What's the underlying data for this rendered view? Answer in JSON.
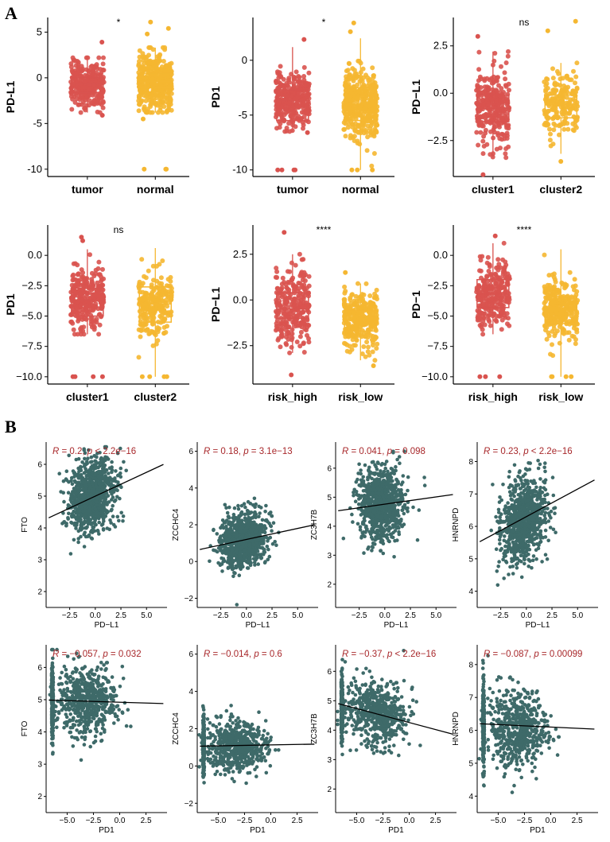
{
  "panel_labels": {
    "a": "A",
    "b": "B"
  },
  "colors": {
    "red": "#d9534f",
    "orange": "#f5b731",
    "teal": "#3e6a69",
    "stat": "#a8282b"
  },
  "chart_data": [
    {
      "type": "box",
      "title": "",
      "ylabel": "PD-L1",
      "categories": [
        "tumor",
        "normal"
      ],
      "significance": "*",
      "ylim": [
        -10.8,
        6.6
      ],
      "yticks": [
        5,
        0,
        -5,
        -10
      ],
      "ytick_labels": [
        "5",
        "0",
        "-5",
        "-10"
      ],
      "boxes": [
        {
          "q1": -1.6,
          "median": -0.7,
          "q3": 0.0,
          "whisker_low": -3.8,
          "whisker_high": 2.2,
          "spread": 1.3,
          "n": 300,
          "outliers": [
            -4.1,
            3.9
          ]
        },
        {
          "q1": -1.1,
          "median": -0.4,
          "q3": 0.5,
          "whisker_low": -3.8,
          "whisker_high": 3.3,
          "spread": 1.5,
          "n": 420,
          "outliers": [
            -10,
            -10,
            -10,
            5.4,
            6.1,
            -4.5,
            4.8
          ]
        }
      ]
    },
    {
      "type": "box",
      "title": "",
      "ylabel": "PD1",
      "categories": [
        "tumor",
        "normal"
      ],
      "significance": "*",
      "ylim": [
        -10.6,
        3.9
      ],
      "yticks": [
        0,
        -5,
        -10
      ],
      "ytick_labels": [
        "0",
        "-5",
        "-10"
      ],
      "boxes": [
        {
          "q1": -5.5,
          "median": -3.7,
          "q3": -2.7,
          "whisker_low": -6.5,
          "whisker_high": 1.2,
          "spread": 1.3,
          "n": 320,
          "outliers": [
            -10,
            -10,
            -10,
            -10,
            1.9,
            -6.6
          ]
        },
        {
          "q1": -5.5,
          "median": -4.0,
          "q3": -2.5,
          "whisker_low": -10,
          "whisker_high": 2.0,
          "spread": 1.5,
          "n": 420,
          "outliers": [
            -10,
            -10,
            -10,
            2.6,
            3.4
          ]
        }
      ]
    },
    {
      "type": "box",
      "title": "",
      "ylabel": "PD−L1",
      "categories": [
        "cluster1",
        "cluster2"
      ],
      "significance": "ns",
      "ylim": [
        -4.4,
        4.0
      ],
      "yticks": [
        2.5,
        0,
        -2.5
      ],
      "ytick_labels": [
        "2.5",
        "0.0",
        "−2.5"
      ],
      "boxes": [
        {
          "q1": -1.5,
          "median": -0.8,
          "q3": -0.1,
          "whisker_low": -3.4,
          "whisker_high": 2.2,
          "spread": 1.0,
          "n": 300,
          "outliers": [
            -4.3,
            3.0
          ]
        },
        {
          "q1": -1.3,
          "median": -0.6,
          "q3": -0.1,
          "whisker_low": -3.2,
          "whisker_high": 1.6,
          "spread": 0.9,
          "n": 200,
          "outliers": [
            3.8,
            3.3,
            -3.6
          ]
        }
      ]
    },
    {
      "type": "box",
      "title": "",
      "ylabel": "PD1",
      "categories": [
        "cluster1",
        "cluster2"
      ],
      "significance": "ns",
      "ylim": [
        -10.6,
        2.5
      ],
      "yticks": [
        0,
        -2.5,
        -5,
        -7.5,
        -10
      ],
      "ytick_labels": [
        "0.0",
        "−2.5",
        "−5.0",
        "−7.5",
        "−10.0"
      ],
      "boxes": [
        {
          "q1": -5.0,
          "median": -3.7,
          "q3": -2.7,
          "whisker_low": -6.5,
          "whisker_high": 0.5,
          "spread": 1.2,
          "n": 300,
          "outliers": [
            -10,
            -10,
            -10,
            -10,
            1.5,
            1.2
          ]
        },
        {
          "q1": -5.5,
          "median": -4.0,
          "q3": -2.6,
          "whisker_low": -10,
          "whisker_high": 0.6,
          "spread": 1.3,
          "n": 250,
          "outliers": [
            -10,
            -10,
            -10,
            -10
          ]
        }
      ]
    },
    {
      "type": "box",
      "title": "",
      "ylabel": "PD−L1",
      "categories": [
        "risk_high",
        "risk_low"
      ],
      "significance": "****",
      "ylim": [
        -4.6,
        4.1
      ],
      "yticks": [
        2.5,
        0,
        -2.5
      ],
      "ytick_labels": [
        "2.5",
        "0.0",
        "−2.5"
      ],
      "boxes": [
        {
          "q1": -1.0,
          "median": -0.5,
          "q3": 0.4,
          "whisker_low": -2.9,
          "whisker_high": 2.5,
          "spread": 1.1,
          "n": 260,
          "outliers": [
            -4.1,
            3.7
          ]
        },
        {
          "q1": -1.7,
          "median": -1.1,
          "q3": -0.6,
          "whisker_low": -3.3,
          "whisker_high": 0.9,
          "spread": 0.8,
          "n": 300,
          "outliers": [
            1.5,
            -3.6
          ]
        }
      ]
    },
    {
      "type": "box",
      "title": "",
      "ylabel": "PD−1",
      "categories": [
        "risk_high",
        "risk_low"
      ],
      "significance": "****",
      "ylim": [
        -10.6,
        2.5
      ],
      "yticks": [
        0,
        -2.5,
        -5,
        -7.5,
        -10
      ],
      "ytick_labels": [
        "0.0",
        "−2.5",
        "−5.0",
        "−7.5",
        "−10.0"
      ],
      "boxes": [
        {
          "q1": -4.3,
          "median": -3.2,
          "q3": -2.0,
          "whisker_low": -6.5,
          "whisker_high": 1.0,
          "spread": 1.3,
          "n": 260,
          "outliers": [
            -10,
            -10,
            -10,
            1.6
          ]
        },
        {
          "q1": -5.6,
          "median": -4.5,
          "q3": -3.4,
          "whisker_low": -10,
          "whisker_high": 0.5,
          "spread": 1.2,
          "n": 300,
          "outliers": [
            -10,
            -10,
            -10,
            -10
          ]
        }
      ]
    },
    {
      "type": "scatter",
      "xlabel": "PD−L1",
      "ylabel": "FTO",
      "stat_r": "0.2",
      "stat_p": "< 2.2e−16",
      "xlim": [
        -4.8,
        7.0
      ],
      "ylim": [
        1.5,
        6.7
      ],
      "xticks": [
        -2.5,
        0,
        2.5,
        5
      ],
      "xtick_labels": [
        "−2.5",
        "0.0",
        "2.5",
        "5.0"
      ],
      "yticks": [
        2,
        3,
        4,
        5,
        6
      ],
      "ytick_labels": [
        "2",
        "3",
        "4",
        "5",
        "6"
      ],
      "cloud": {
        "cx": -0.3,
        "cy": 5.0,
        "sx": 1.1,
        "sy": 0.55,
        "n": 900,
        "strip": false
      },
      "fit": {
        "slope": 0.15,
        "intercept": 5.0
      }
    },
    {
      "type": "scatter",
      "xlabel": "PD−L1",
      "ylabel": "ZCCHC4",
      "stat_r": "0.18",
      "stat_p": "= 3.1e−13",
      "xlim": [
        -4.8,
        7.0
      ],
      "ylim": [
        -2.5,
        6.5
      ],
      "xticks": [
        -2.5,
        0,
        2.5,
        5
      ],
      "xtick_labels": [
        "−2.5",
        "0.0",
        "2.5",
        "5.0"
      ],
      "yticks": [
        -2,
        0,
        2,
        4,
        6
      ],
      "ytick_labels": [
        "−2",
        "0",
        "2",
        "4",
        "6"
      ],
      "cloud": {
        "cx": -0.3,
        "cy": 1.2,
        "sx": 1.1,
        "sy": 0.75,
        "n": 900,
        "strip": false
      },
      "fit": {
        "slope": 0.12,
        "intercept": 1.2
      }
    },
    {
      "type": "scatter",
      "xlabel": "PD−L1",
      "ylabel": "ZC3H7B",
      "stat_r": "0.041",
      "stat_p": "= 0.098",
      "xlim": [
        -4.8,
        7.0
      ],
      "ylim": [
        1.2,
        6.9
      ],
      "xticks": [
        -2.5,
        0,
        2.5,
        5
      ],
      "xtick_labels": [
        "−2.5",
        "0.0",
        "2.5",
        "5.0"
      ],
      "yticks": [
        2,
        3,
        4,
        5,
        6
      ],
      "ytick_labels": [
        "2",
        "3",
        "4",
        "5",
        "6"
      ],
      "cloud": {
        "cx": -0.3,
        "cy": 4.75,
        "sx": 1.1,
        "sy": 0.6,
        "n": 900,
        "strip": false
      },
      "fit": {
        "slope": 0.05,
        "intercept": 4.76
      }
    },
    {
      "type": "scatter",
      "xlabel": "PD−L1",
      "ylabel": "HNRNPD",
      "stat_r": "0.23",
      "stat_p": "< 2.2e−16",
      "xlim": [
        -4.8,
        7.0
      ],
      "ylim": [
        3.5,
        8.6
      ],
      "xticks": [
        -2.5,
        0,
        2.5,
        5
      ],
      "xtick_labels": [
        "−2.5",
        "0.0",
        "2.5",
        "5.0"
      ],
      "yticks": [
        4,
        5,
        6,
        7,
        8
      ],
      "ytick_labels": [
        "4",
        "5",
        "6",
        "7",
        "8"
      ],
      "cloud": {
        "cx": -0.3,
        "cy": 6.2,
        "sx": 1.1,
        "sy": 0.6,
        "n": 900,
        "strip": false
      },
      "fit": {
        "slope": 0.17,
        "intercept": 6.3
      }
    },
    {
      "type": "scatter",
      "xlabel": "PD1",
      "ylabel": "FTO",
      "stat_r": "−0.057",
      "stat_p": "= 0.032",
      "xlim": [
        -7.0,
        4.5
      ],
      "ylim": [
        1.5,
        6.7
      ],
      "xticks": [
        -5,
        -2.5,
        0,
        2.5
      ],
      "xtick_labels": [
        "−5.0",
        "−2.5",
        "0.0",
        "2.5"
      ],
      "yticks": [
        2,
        3,
        4,
        5,
        6
      ],
      "ytick_labels": [
        "2",
        "3",
        "4",
        "5",
        "6"
      ],
      "cloud": {
        "cx": -3.2,
        "cy": 4.95,
        "sx": 1.4,
        "sy": 0.55,
        "n": 900,
        "strip": true
      },
      "fit": {
        "slope": -0.01,
        "intercept": 4.92
      }
    },
    {
      "type": "scatter",
      "xlabel": "PD1",
      "ylabel": "ZCCHC4",
      "stat_r": "−0.014",
      "stat_p": "= 0.6",
      "xlim": [
        -7.0,
        4.5
      ],
      "ylim": [
        -2.5,
        6.5
      ],
      "xticks": [
        -5,
        -2.5,
        0,
        2.5
      ],
      "xtick_labels": [
        "−5.0",
        "−2.5",
        "0.0",
        "2.5"
      ],
      "yticks": [
        -2,
        0,
        2,
        4,
        6
      ],
      "ytick_labels": [
        "−2",
        "0",
        "2",
        "4",
        "6"
      ],
      "cloud": {
        "cx": -3.2,
        "cy": 1.1,
        "sx": 1.4,
        "sy": 0.65,
        "n": 900,
        "strip": true
      },
      "fit": {
        "slope": 0.01,
        "intercept": 1.13
      }
    },
    {
      "type": "scatter",
      "xlabel": "PD1",
      "ylabel": "ZC3H7B",
      "stat_r": "−0.37",
      "stat_p": "< 2.2e−16",
      "xlim": [
        -7.0,
        4.5
      ],
      "ylim": [
        1.2,
        6.9
      ],
      "xticks": [
        -5,
        -2.5,
        0,
        2.5
      ],
      "xtick_labels": [
        "−5.0",
        "−2.5",
        "0.0",
        "2.5"
      ],
      "yticks": [
        2,
        3,
        4,
        5,
        6
      ],
      "ytick_labels": [
        "2",
        "3",
        "4",
        "5",
        "6"
      ],
      "cloud": {
        "cx": -3.2,
        "cy": 4.55,
        "sx": 1.4,
        "sy": 0.55,
        "n": 900,
        "strip": true
      },
      "fit": {
        "slope": -0.095,
        "intercept": 4.26
      }
    },
    {
      "type": "scatter",
      "xlabel": "PD1",
      "ylabel": "HNRNPD",
      "stat_r": "−0.087",
      "stat_p": "= 0.00099",
      "xlim": [
        -7.0,
        4.5
      ],
      "ylim": [
        3.5,
        8.6
      ],
      "xticks": [
        -5,
        -2.5,
        0,
        2.5
      ],
      "xtick_labels": [
        "−5.0",
        "−2.5",
        "0.0",
        "2.5"
      ],
      "yticks": [
        4,
        5,
        6,
        7,
        8
      ],
      "ytick_labels": [
        "4",
        "5",
        "6",
        "7",
        "8"
      ],
      "cloud": {
        "cx": -3.2,
        "cy": 6.1,
        "sx": 1.4,
        "sy": 0.6,
        "n": 900,
        "strip": true
      },
      "fit": {
        "slope": -0.015,
        "intercept": 6.1
      }
    }
  ]
}
